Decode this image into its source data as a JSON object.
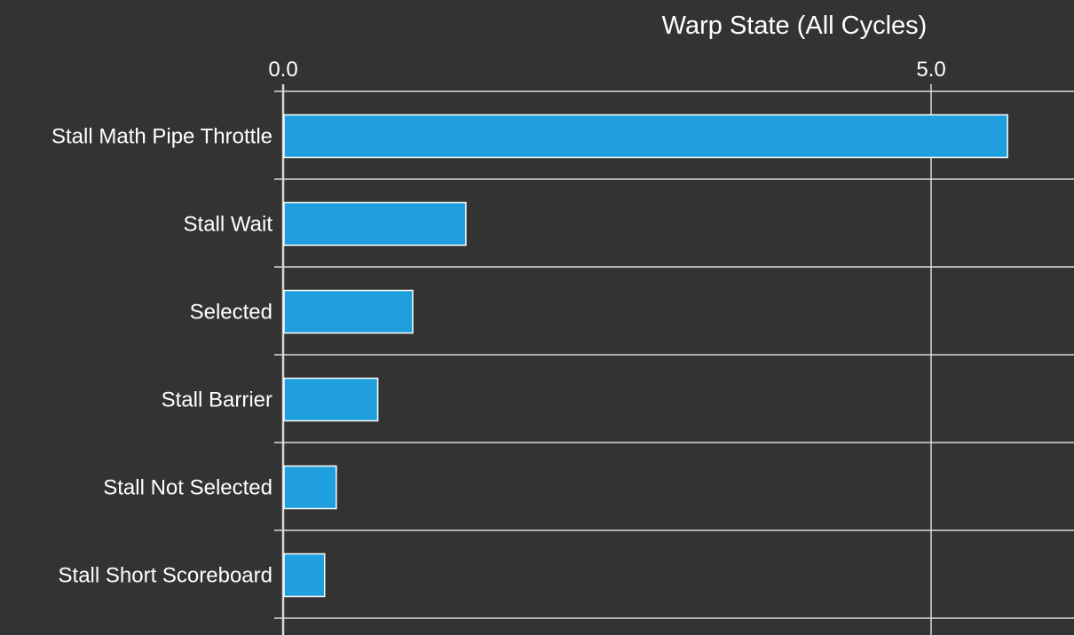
{
  "chart_data": {
    "type": "bar",
    "orientation": "horizontal",
    "title": "Warp State (All Cycles)",
    "xlabel": "",
    "ylabel": "",
    "categories": [
      "Stall Math Pipe Throttle",
      "Stall Wait",
      "Selected",
      "Stall Barrier",
      "Stall Not Selected",
      "Stall Short Scoreboard"
    ],
    "values": [
      5.59,
      1.41,
      1.0,
      0.73,
      0.41,
      0.32
    ],
    "xlim": [
      0,
      6.0
    ],
    "x_ticks": [
      {
        "value": 0,
        "label": "0.0"
      },
      {
        "value": 5,
        "label": "5.0"
      }
    ],
    "grid": true,
    "axis_position": "top",
    "bar_color": "#1f9fde",
    "bar_stroke": "#ffffff",
    "background": "#333333",
    "grid_color": "#d9d9d9"
  }
}
